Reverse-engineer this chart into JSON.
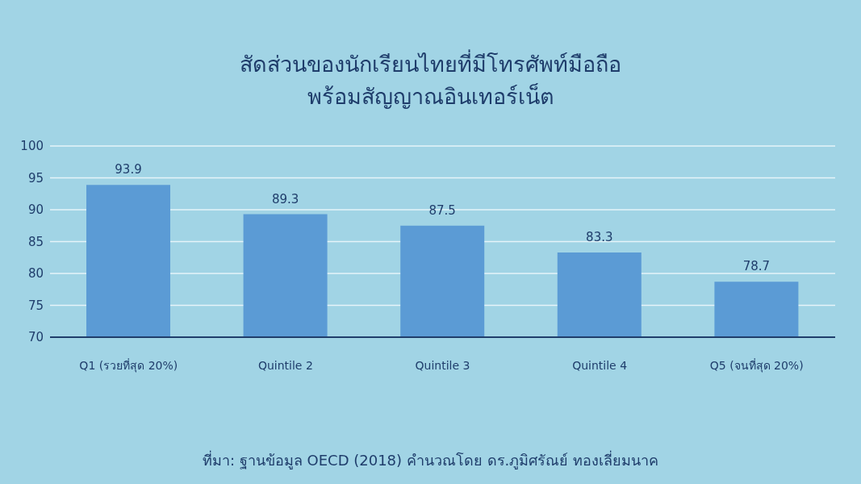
{
  "chart_data": {
    "type": "bar",
    "title": "สัดส่วนของนักเรียนไทยที่มีโทรศัพท์มือถือ\nพร้อมสัญญาณอินเทอร์เน็ต",
    "categories": [
      "Q1 (รวยที่สุด 20%)",
      "Quintile 2",
      "Quintile 3",
      "Quintile 4",
      "Q5 (จนที่สุด 20%)"
    ],
    "values": [
      93.9,
      89.3,
      87.5,
      83.3,
      78.7
    ],
    "color": "#5b9bd5",
    "ylim": [
      70,
      100
    ],
    "yticks": [
      70,
      75,
      80,
      85,
      90,
      95,
      100
    ],
    "grid": "y",
    "data_labels": true,
    "annotations": [
      "ที่มา: ฐานข้อมูล OECD (2018) คำนวณโดย ดร.ภูมิศรัณย์ ทองเลี่ยมนาค"
    ]
  }
}
